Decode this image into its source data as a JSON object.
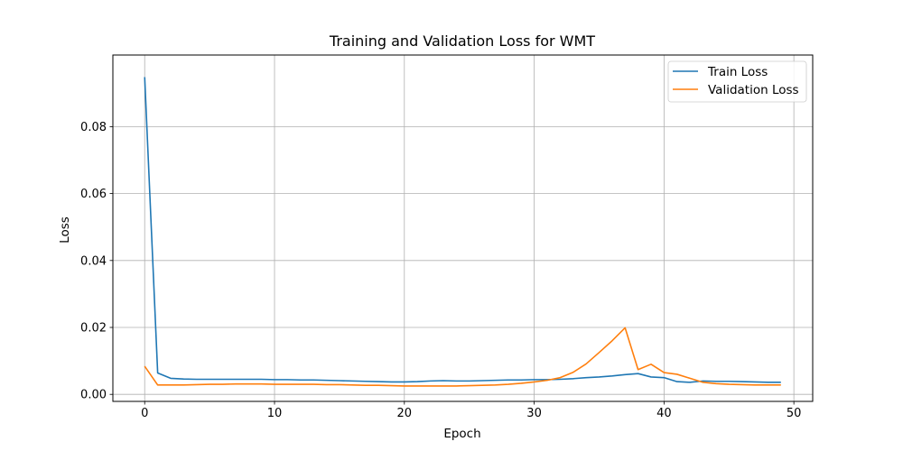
{
  "chart_data": {
    "type": "line",
    "title": "Training and Validation Loss for WMT",
    "xlabel": "Epoch",
    "ylabel": "Loss",
    "xlim": [
      -2.45,
      51.45
    ],
    "ylim": [
      -0.0021,
      0.1014
    ],
    "x_ticks": [
      0,
      10,
      20,
      30,
      40,
      50
    ],
    "y_ticks": [
      0.0,
      0.02,
      0.04,
      0.06,
      0.08
    ],
    "y_tick_labels": [
      "0.00",
      "0.02",
      "0.04",
      "0.06",
      "0.08"
    ],
    "grid": true,
    "legend_position": "top-right",
    "x": [
      0,
      1,
      2,
      3,
      4,
      5,
      6,
      7,
      8,
      9,
      10,
      11,
      12,
      13,
      14,
      15,
      16,
      17,
      18,
      19,
      20,
      21,
      22,
      23,
      24,
      25,
      26,
      27,
      28,
      29,
      30,
      31,
      32,
      33,
      34,
      35,
      36,
      37,
      38,
      39,
      40,
      41,
      42,
      43,
      44,
      45,
      46,
      47,
      48,
      49
    ],
    "series": [
      {
        "name": "Train Loss",
        "color": "#1f77b4",
        "values": [
          0.0948,
          0.0064,
          0.0048,
          0.0046,
          0.0045,
          0.0045,
          0.0045,
          0.0045,
          0.0045,
          0.0045,
          0.0044,
          0.0044,
          0.0043,
          0.0043,
          0.0042,
          0.0041,
          0.004,
          0.0039,
          0.0038,
          0.0037,
          0.0037,
          0.0038,
          0.004,
          0.0041,
          0.004,
          0.004,
          0.0041,
          0.0042,
          0.0043,
          0.0043,
          0.0044,
          0.0044,
          0.0045,
          0.0047,
          0.005,
          0.0052,
          0.0055,
          0.0059,
          0.0062,
          0.0052,
          0.005,
          0.0038,
          0.0036,
          0.004,
          0.0039,
          0.0039,
          0.0038,
          0.0037,
          0.0036,
          0.0036
        ]
      },
      {
        "name": "Validation Loss",
        "color": "#ff7f0e",
        "values": [
          0.0084,
          0.0028,
          0.0028,
          0.0028,
          0.0029,
          0.003,
          0.003,
          0.0031,
          0.0031,
          0.0031,
          0.003,
          0.003,
          0.003,
          0.003,
          0.0029,
          0.0029,
          0.0028,
          0.0027,
          0.0027,
          0.0026,
          0.0025,
          0.0025,
          0.0025,
          0.0025,
          0.0025,
          0.0026,
          0.0027,
          0.0028,
          0.003,
          0.0033,
          0.0037,
          0.0042,
          0.005,
          0.0066,
          0.0091,
          0.0125,
          0.016,
          0.0199,
          0.0074,
          0.009,
          0.0065,
          0.006,
          0.0048,
          0.0036,
          0.0032,
          0.003,
          0.0029,
          0.0028,
          0.0028,
          0.0028
        ]
      }
    ]
  }
}
